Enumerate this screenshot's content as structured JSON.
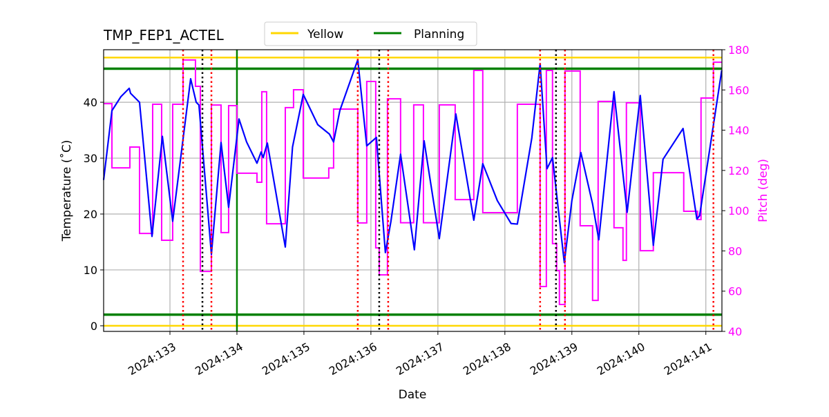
{
  "chart_data": {
    "type": "line",
    "title": "TMP_FEP1_ACTEL",
    "xlabel": "Date",
    "ylabel": "Temperature ($^\\circ$C)",
    "ylabel_display": "Temperature (˚C)",
    "ylabel_right": "Pitch (deg)",
    "xlim": [
      132.01,
      141.24
    ],
    "ylim": [
      -1,
      49.4
    ],
    "ylim_right": [
      40,
      180
    ],
    "grid": true,
    "legend_placement": "top-center",
    "x_ticks": [
      {
        "value": 133,
        "label": "2024:133"
      },
      {
        "value": 134,
        "label": "2024:134"
      },
      {
        "value": 135,
        "label": "2024:135"
      },
      {
        "value": 136,
        "label": "2024:136"
      },
      {
        "value": 137,
        "label": "2024:137"
      },
      {
        "value": 138,
        "label": "2024:138"
      },
      {
        "value": 139,
        "label": "2024:139"
      },
      {
        "value": 140,
        "label": "2024:140"
      },
      {
        "value": 141,
        "label": "2024:141"
      }
    ],
    "y_ticks": [
      0,
      10,
      20,
      30,
      40
    ],
    "y_ticks_right": [
      40,
      60,
      80,
      100,
      120,
      140,
      160,
      180
    ],
    "colors": {
      "temperature": "#0000ff",
      "pitch": "#ff00ff",
      "yellow": "#ffd700",
      "planning": "#008000",
      "red_events": "#ff0000",
      "black_events": "#000000",
      "grid": "#b0b0b0"
    },
    "limit_lines": [
      {
        "name": "Yellow",
        "color": "#ffd700",
        "values": [
          0,
          48
        ]
      },
      {
        "name": "Planning",
        "color": "#008000",
        "values": [
          2,
          46
        ]
      }
    ],
    "legend": [
      {
        "label": "Yellow",
        "color": "#ffd700"
      },
      {
        "label": "Planning",
        "color": "#008000"
      }
    ],
    "vertical_green": [
      134.0
    ],
    "vertical_red_dotted": [
      133.196,
      133.619,
      135.804,
      136.258,
      138.526,
      138.897,
      141.113
    ],
    "vertical_black_dotted": [
      133.485,
      136.124,
      138.763
    ],
    "temperature_series": {
      "x": [
        132.01,
        132.134,
        132.268,
        132.392,
        132.412,
        132.546,
        132.732,
        132.887,
        133.041,
        133.309,
        133.392,
        133.433,
        133.619,
        133.763,
        133.876,
        134.031,
        134.144,
        134.299,
        134.361,
        134.392,
        134.454,
        134.722,
        134.83,
        134.99,
        135.206,
        135.381,
        135.443,
        135.536,
        135.804,
        135.938,
        136.082,
        136.216,
        136.299,
        136.443,
        136.649,
        136.794,
        137.021,
        137.268,
        137.536,
        137.67,
        137.887,
        138.093,
        138.186,
        138.402,
        138.526,
        138.629,
        138.711,
        138.887,
        139.0,
        139.134,
        139.309,
        139.402,
        139.629,
        139.825,
        140.021,
        140.216,
        140.361,
        140.66,
        140.866,
        140.907,
        141.237
      ],
      "y": [
        26.1,
        38.5,
        41.0,
        42.5,
        41.6,
        40.0,
        16.0,
        33.9,
        18.7,
        44.2,
        40.0,
        39.5,
        12.8,
        32.8,
        21.2,
        37.0,
        32.9,
        29.1,
        31.1,
        30.1,
        32.7,
        14.1,
        32.0,
        41.4,
        36.0,
        34.3,
        32.9,
        38.5,
        47.6,
        32.2,
        33.7,
        13.1,
        18.7,
        30.7,
        13.6,
        33.1,
        15.6,
        37.9,
        18.9,
        29.0,
        22.4,
        18.3,
        18.2,
        33.6,
        46.9,
        28.1,
        30.1,
        11.3,
        22.4,
        31.0,
        21.8,
        15.4,
        41.9,
        20.3,
        41.2,
        14.4,
        29.8,
        35.3,
        19.1,
        19.7,
        45.7
      ]
    },
    "pitch_series": {
      "x": [
        132.01,
        132.134,
        132.402,
        132.546,
        132.742,
        132.876,
        133.041,
        133.196,
        133.381,
        133.454,
        133.619,
        133.763,
        133.876,
        134.0,
        134.299,
        134.371,
        134.443,
        134.722,
        134.845,
        134.99,
        135.371,
        135.443,
        135.804,
        135.938,
        136.072,
        136.124,
        136.247,
        136.443,
        136.639,
        136.784,
        137.021,
        137.258,
        137.536,
        137.67,
        138.186,
        138.526,
        138.619,
        138.711,
        138.773,
        138.814,
        138.897,
        139.124,
        139.309,
        139.392,
        139.629,
        139.763,
        139.814,
        140.021,
        140.216,
        140.67,
        140.876,
        140.928,
        141.113,
        141.237
      ],
      "y": [
        153.2,
        121.3,
        131.6,
        88.7,
        152.9,
        85.3,
        152.9,
        174.9,
        161.8,
        69.8,
        152.5,
        89.1,
        152.2,
        118.6,
        114.1,
        159.1,
        93.5,
        151.2,
        160.1,
        116.2,
        121.2,
        150.5,
        93.9,
        164.2,
        81.5,
        68.1,
        155.6,
        94.0,
        152.6,
        94.0,
        152.6,
        105.5,
        169.7,
        99.0,
        152.9,
        62.3,
        169.7,
        83.6,
        70.2,
        53.4,
        169.4,
        92.5,
        55.4,
        154.3,
        91.5,
        75.3,
        153.6,
        80.1,
        118.9,
        99.7,
        95.6,
        156.0,
        173.8,
        173.8
      ]
    }
  }
}
